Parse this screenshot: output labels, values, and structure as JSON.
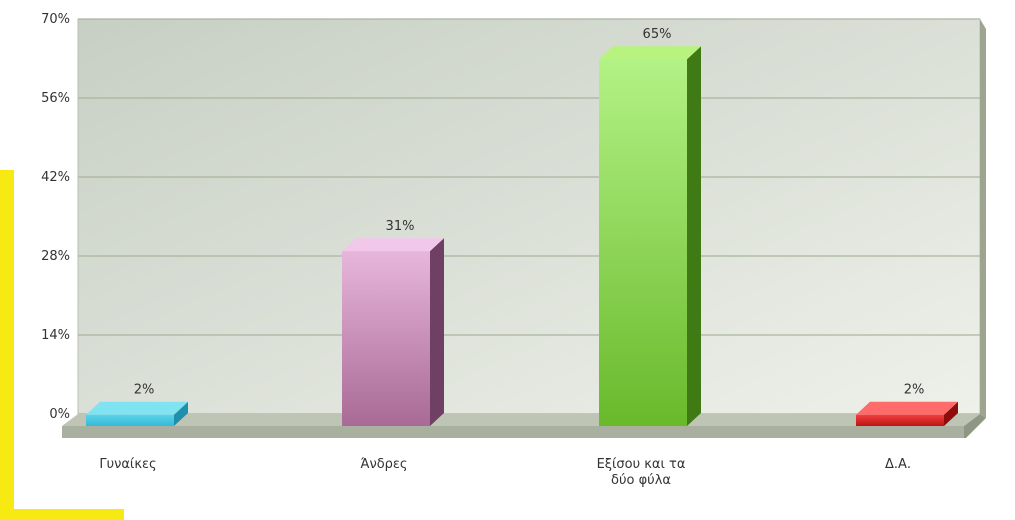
{
  "chart_data": {
    "type": "bar",
    "categories": [
      [
        "Γυναίκες"
      ],
      [
        "Άνδρες"
      ],
      [
        "Εξίσου και τα",
        "δύο φύλα"
      ],
      [
        "Δ.Α."
      ]
    ],
    "values": [
      2,
      31,
      65,
      2
    ],
    "value_labels": [
      "2%",
      "31%",
      "65%",
      "2%"
    ],
    "ylim": [
      0,
      70
    ],
    "yticks": [
      0,
      14,
      28,
      42,
      56,
      70
    ],
    "ytick_labels": [
      "0%",
      "14%",
      "28%",
      "42%",
      "56%",
      "70%"
    ],
    "grid": true,
    "legend": "none",
    "colors": {
      "bars": [
        {
          "top": "#7fe3f2",
          "front_top": "#5bd3ea",
          "front_bottom": "#37b9d5",
          "side": "#1f8fab"
        },
        {
          "top": "#f1c8e9",
          "front_top": "#e7b6dc",
          "front_bottom": "#a86a96",
          "side": "#6f3f64"
        },
        {
          "top": "#b9f37f",
          "front_top": "#b3f286",
          "front_bottom": "#69b92b",
          "side": "#3f7a14"
        },
        {
          "top": "#ff6a6a",
          "front_top": "#f14040",
          "front_bottom": "#bf1313",
          "side": "#8e0c0c"
        }
      ],
      "plot_bg_start": "#c7cfc4",
      "plot_bg_end": "#eef1ea",
      "grid": "#aab59f",
      "floor": "#aab0a0"
    }
  }
}
